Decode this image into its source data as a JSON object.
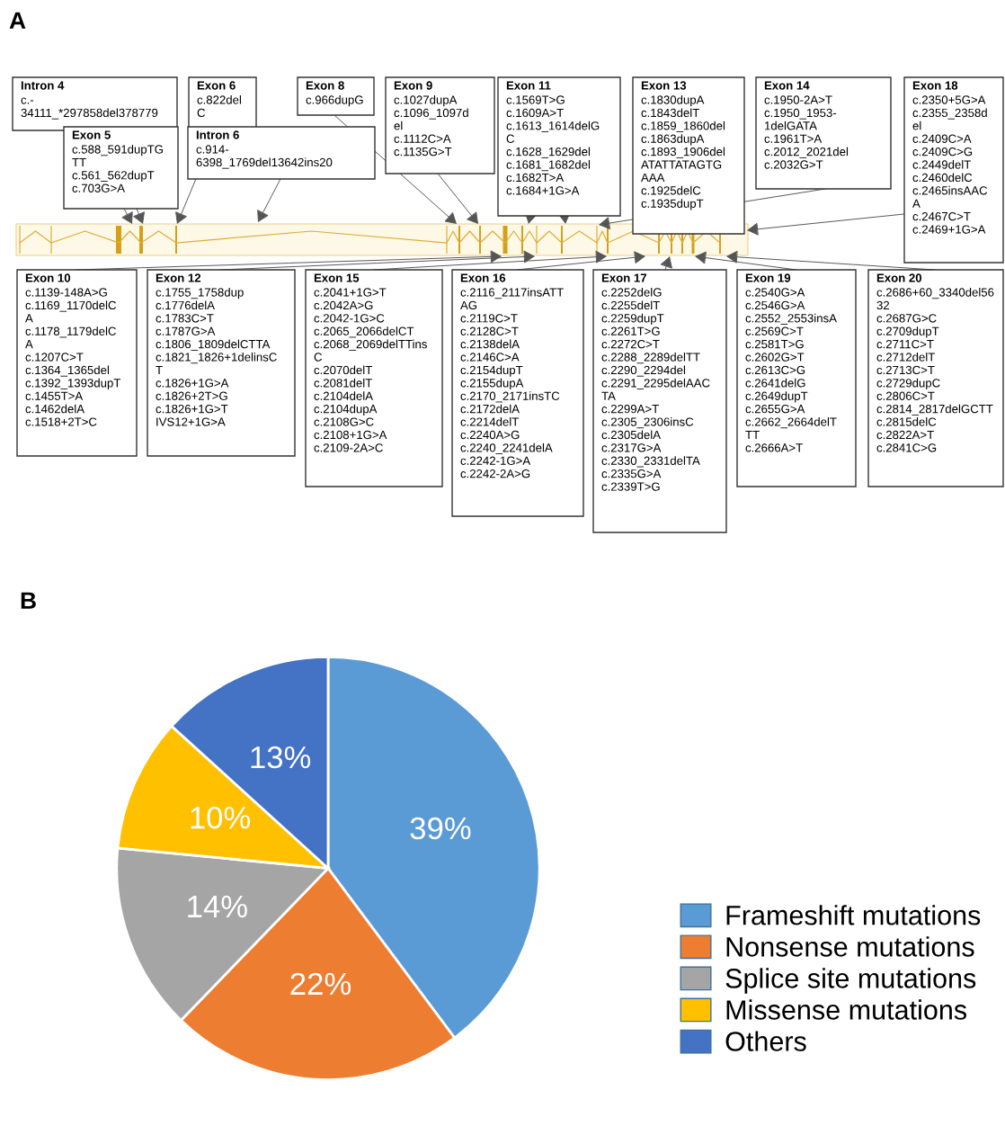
{
  "chart_data": [
    {
      "type": "other",
      "title": "A",
      "annotations": [
        "Intron 4\nc.-\n34111_*297858del378779",
        "Exon 6\nc.822del\nC",
        "Exon 8\nc.966dupG",
        "Exon 9\nc.1027dupA\nc.1096_1097d\nel\nc.1112C>A\nc.1135G>T",
        "Exon 11\nc.1569T>G\nc.1609A>T\nc.1613_1614delG\nC\nc.1628_1629del\nc.1681_1682del\nc.1682T>A\nc.1684+1G>A",
        "Exon 13\nc.1830dupA\nc.1843delT\nc.1859_1860del\nc.1863dupA\nc.1893_1906del\nATATTATAGTG\nAAA\nc.1925delC\nc.1935dupT",
        "Exon 14\nc.1950-2A>T\nc.1950_1953-\n1delGATA\nc.1961T>A\nc.2012_2021del\nc.2032G>T",
        "Exon 18\nc.2350+5G>A\nc.2355_2358d\nel\nc.2409C>A\nc.2409C>G\nc.2449delT\nc.2460delC\nc.2465insAAC\nA\nc.2467C>T\nc.2469+1G>A",
        "Exon 5\nc.588_591dupTG\nTT\nc.561_562dupT\nc.703G>A",
        "Intron 6\nc.914-\n6398_1769del13642ins20",
        "Exon 10\nc.1139-148A>G\nc.1169_1170delC\nA\nc.1178_1179delC\nA\nc.1207C>T\nc.1364_1365del\nc.1392_1393dupT\nc.1455T>A\nc.1462delA\nc.1518+2T>C",
        "Exon 12\nc.1755_1758dup\nc.1776delA\nc.1783C>T\nc.1787G>A\nc.1806_1809delCTTA\nc.1821_1826+1delinsC\nT\nc.1826+1G>A\nc.1826+2T>G\nc.1826+1G>T\nIVS12+1G>A",
        "Exon 15\nc.2041+1G>T\nc.2042A>G\nc.2042-1G>C\nc.2065_2066delCT\nc.2068_2069delTTins\nC\nc.2070delT\nc.2081delT\nc.2104delA\nc.2104dupA\nc.2108G>C\nc.2108+1G>A\nc.2109-2A>C",
        "Exon 16\nc.2116_2117insATT\nAG\nc.2119C>T\nc.2128C>T\nc.2138delA\nc.2146C>A\nc.2154dupT\nc.2155dupA\nc.2170_2171insTC\nc.2172delA\nc.2214delT\nc.2240A>G\nc.2240_2241delA\nc.2242-1G>A\nc.2242-2A>G",
        "Exon 17\nc.2252delG\nc.2255delT\nc.2259dupT\nc.2261T>G\nc.2272C>T\nc.2288_2289delTT\nc.2290_2294del\nc.2291_2295delAAC\nTA\nc.2299A>T\nc.2305_2306insC\nc.2305delA\nc.2317G>A\nc.2330_2331delTA\nc.2335G>A\nc.2339T>G",
        "Exon 19\nc.2540G>A\nc.2546G>A\nc.2552_2553insA\nc.2569C>T\nc.2581T>G\nc.2602G>T\nc.2613C>G\nc.2641delG\nc.2649dupT\nc.2655G>A\nc.2662_2664delT\nTT\nc.2666A>T",
        "Exon 20\nc.2686+60_3340del56\n32\nc.2687G>C\nc.2709dupT\nc.2711C>T\nc.2712delT\nc.2713C>T\nc.2729dupC\nc.2806C>T\nc.2814_2817delGCTT\nc.2815delC\nc.2822A>T\nc.2841C>G"
      ]
    },
    {
      "type": "pie",
      "title": "B",
      "categories": [
        "Frameshift mutations",
        "Nonsense mutations",
        "Splice site mutations",
        "Missense mutations",
        "Others"
      ],
      "values": [
        39,
        22,
        14,
        10,
        13
      ],
      "value_labels": [
        "39%",
        "22%",
        "14%",
        "10%",
        "13%"
      ],
      "colors": [
        "#5b9bd5",
        "#ed7d31",
        "#a5a5a5",
        "#ffc000",
        "#4472c4"
      ],
      "legend": "right"
    }
  ]
}
